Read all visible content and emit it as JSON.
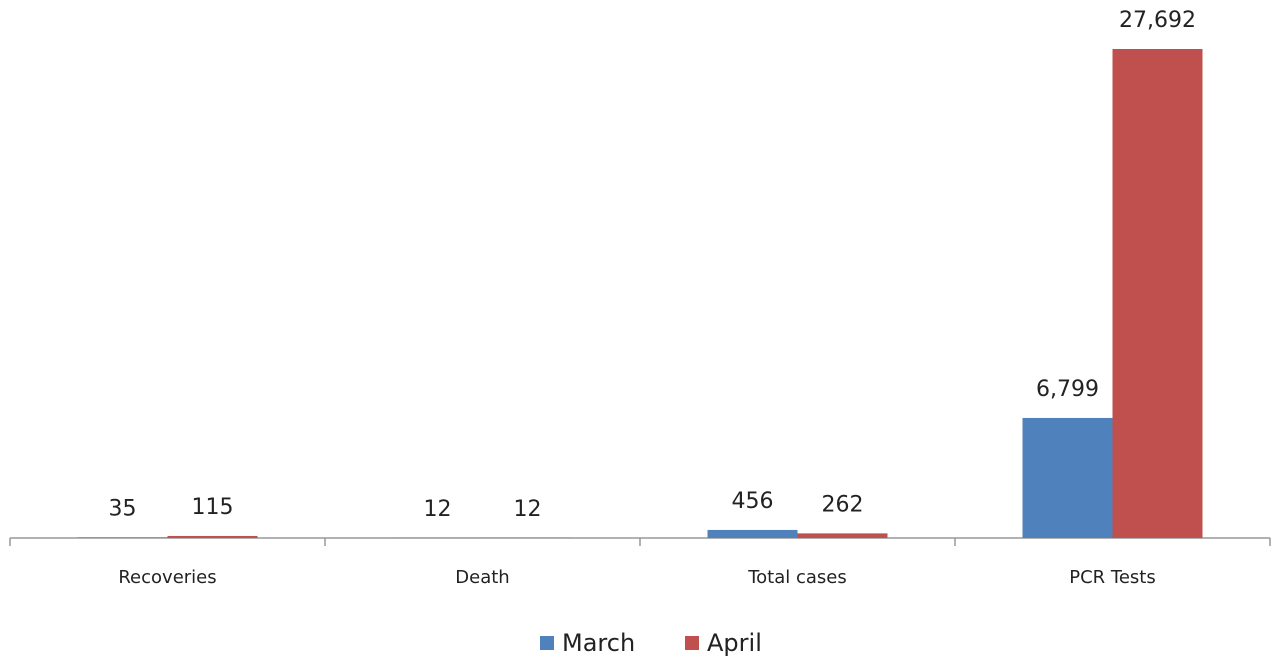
{
  "chart_data": {
    "type": "bar",
    "categories": [
      "Recoveries",
      "Death",
      "Total cases",
      "PCR Tests"
    ],
    "series": [
      {
        "name": "March",
        "color": "#4f81bd",
        "values": [
          35,
          12,
          456,
          6799
        ],
        "value_labels": [
          "35",
          "12",
          "456",
          "6,799"
        ]
      },
      {
        "name": "April",
        "color": "#c0504d",
        "values": [
          115,
          12,
          262,
          27692
        ],
        "value_labels": [
          "115",
          "12",
          "262",
          "27,692"
        ]
      }
    ],
    "legend": "bottom"
  }
}
